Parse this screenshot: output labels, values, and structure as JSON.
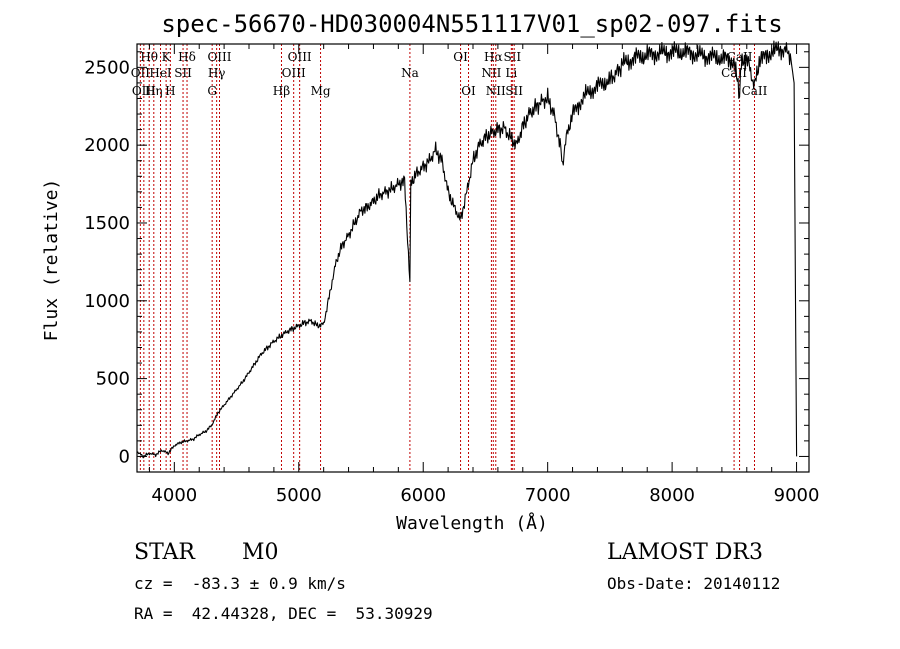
{
  "chart_data": {
    "type": "line",
    "title": "spec-56670-HD030004N551117V01_sp02-097.fits",
    "xlabel": "Wavelength (Å)",
    "ylabel": "Flux (relative)",
    "xlim": [
      3700,
      9100
    ],
    "ylim": [
      -100,
      2650
    ],
    "x_ticks": [
      4000,
      5000,
      6000,
      7000,
      8000,
      9000
    ],
    "y_ticks": [
      0,
      500,
      1000,
      1500,
      2000,
      2500
    ],
    "x_tick_labels": [
      "4000",
      "5000",
      "6000",
      "7000",
      "8000",
      "9000"
    ],
    "y_tick_labels": [
      "0",
      "500",
      "1000",
      "1500",
      "2000",
      "2500"
    ],
    "grid": false,
    "line_color": "#000000",
    "marker_color": "#c00000",
    "spectral_lines": [
      {
        "label": "Hθ",
        "wavelength": 3798,
        "row": 1
      },
      {
        "label": "OII",
        "wavelength": 3727,
        "row": 2
      },
      {
        "label": "OIII",
        "wavelength": 3755,
        "row": 3
      },
      {
        "label": "Hη",
        "wavelength": 3835,
        "row": 3
      },
      {
        "label": "HeI",
        "wavelength": 3889,
        "row": 2
      },
      {
        "label": "K",
        "wavelength": 3934,
        "row": 1
      },
      {
        "label": "H",
        "wavelength": 3968,
        "row": 3
      },
      {
        "label": "SII",
        "wavelength": 4070,
        "row": 2
      },
      {
        "label": "Hδ",
        "wavelength": 4102,
        "row": 1
      },
      {
        "label": "G",
        "wavelength": 4304,
        "row": 3
      },
      {
        "label": "Hγ",
        "wavelength": 4340,
        "row": 2
      },
      {
        "label": "OIII",
        "wavelength": 4363,
        "row": 1
      },
      {
        "label": "Hβ",
        "wavelength": 4861,
        "row": 3
      },
      {
        "label": "OIII",
        "wavelength": 4959,
        "row": 2
      },
      {
        "label": "OIII",
        "wavelength": 5007,
        "row": 1
      },
      {
        "label": "Mg",
        "wavelength": 5175,
        "row": 3
      },
      {
        "label": "Na",
        "wavelength": 5893,
        "row": 2
      },
      {
        "label": "OI",
        "wavelength": 6300,
        "row": 1
      },
      {
        "label": "OI",
        "wavelength": 6364,
        "row": 3
      },
      {
        "label": "NII",
        "wavelength": 6548,
        "row": 2
      },
      {
        "label": "Hα",
        "wavelength": 6563,
        "row": 1
      },
      {
        "label": "NII",
        "wavelength": 6583,
        "row": 3
      },
      {
        "label": "Li",
        "wavelength": 6708,
        "row": 2
      },
      {
        "label": "SII",
        "wavelength": 6716,
        "row": 1
      },
      {
        "label": "SII",
        "wavelength": 6731,
        "row": 3
      },
      {
        "label": "CaII",
        "wavelength": 8498,
        "row": 2
      },
      {
        "label": "CaII",
        "wavelength": 8542,
        "row": 1
      },
      {
        "label": "CaII",
        "wavelength": 8662,
        "row": 3
      }
    ],
    "series": [
      {
        "name": "flux",
        "points": [
          [
            3700,
            30
          ],
          [
            3750,
            0
          ],
          [
            3800,
            20
          ],
          [
            3850,
            10
          ],
          [
            3900,
            40
          ],
          [
            3950,
            20
          ],
          [
            4000,
            70
          ],
          [
            4050,
            90
          ],
          [
            4100,
            100
          ],
          [
            4150,
            110
          ],
          [
            4200,
            140
          ],
          [
            4250,
            160
          ],
          [
            4300,
            200
          ],
          [
            4350,
            280
          ],
          [
            4400,
            330
          ],
          [
            4450,
            380
          ],
          [
            4500,
            430
          ],
          [
            4550,
            480
          ],
          [
            4600,
            540
          ],
          [
            4650,
            600
          ],
          [
            4700,
            660
          ],
          [
            4750,
            700
          ],
          [
            4800,
            740
          ],
          [
            4850,
            770
          ],
          [
            4900,
            800
          ],
          [
            4950,
            820
          ],
          [
            5000,
            840
          ],
          [
            5050,
            860
          ],
          [
            5100,
            870
          ],
          [
            5150,
            840
          ],
          [
            5200,
            850
          ],
          [
            5250,
            1050
          ],
          [
            5300,
            1250
          ],
          [
            5350,
            1360
          ],
          [
            5400,
            1420
          ],
          [
            5450,
            1500
          ],
          [
            5500,
            1580
          ],
          [
            5550,
            1600
          ],
          [
            5600,
            1640
          ],
          [
            5650,
            1680
          ],
          [
            5700,
            1700
          ],
          [
            5750,
            1720
          ],
          [
            5800,
            1750
          ],
          [
            5850,
            1770
          ],
          [
            5893,
            1120
          ],
          [
            5900,
            1760
          ],
          [
            5950,
            1820
          ],
          [
            6000,
            1860
          ],
          [
            6050,
            1900
          ],
          [
            6100,
            1970
          ],
          [
            6150,
            1900
          ],
          [
            6200,
            1700
          ],
          [
            6250,
            1600
          ],
          [
            6300,
            1520
          ],
          [
            6350,
            1700
          ],
          [
            6400,
            1900
          ],
          [
            6450,
            2000
          ],
          [
            6500,
            2050
          ],
          [
            6550,
            2080
          ],
          [
            6600,
            2100
          ],
          [
            6650,
            2110
          ],
          [
            6700,
            2050
          ],
          [
            6750,
            2000
          ],
          [
            6800,
            2120
          ],
          [
            6850,
            2200
          ],
          [
            6900,
            2240
          ],
          [
            6950,
            2280
          ],
          [
            7000,
            2300
          ],
          [
            7050,
            2200
          ],
          [
            7100,
            2000
          ],
          [
            7120,
            1880
          ],
          [
            7150,
            2050
          ],
          [
            7200,
            2200
          ],
          [
            7300,
            2320
          ],
          [
            7400,
            2380
          ],
          [
            7500,
            2420
          ],
          [
            7550,
            2460
          ],
          [
            7600,
            2520
          ],
          [
            7700,
            2560
          ],
          [
            7800,
            2580
          ],
          [
            7900,
            2590
          ],
          [
            8000,
            2600
          ],
          [
            8100,
            2600
          ],
          [
            8200,
            2580
          ],
          [
            8300,
            2570
          ],
          [
            8400,
            2560
          ],
          [
            8500,
            2540
          ],
          [
            8542,
            2300
          ],
          [
            8550,
            2500
          ],
          [
            8600,
            2560
          ],
          [
            8662,
            2380
          ],
          [
            8700,
            2540
          ],
          [
            8800,
            2600
          ],
          [
            8900,
            2620
          ],
          [
            8950,
            2580
          ],
          [
            8980,
            2400
          ],
          [
            9000,
            0
          ]
        ]
      }
    ]
  },
  "info": {
    "object_class": "STAR",
    "subclass": "M0",
    "survey": "LAMOST DR3",
    "redshift": "cz =  -83.3 ± 0.9 km/s",
    "obs_date": "Obs-Date: 20140112",
    "coords": "RA =  42.44328, DEC =  53.30929"
  }
}
